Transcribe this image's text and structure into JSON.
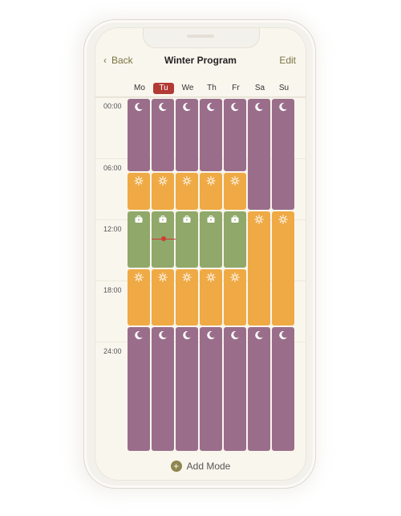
{
  "header": {
    "back_label": "Back",
    "title": "Winter Program",
    "edit_label": "Edit"
  },
  "days": [
    "Mo",
    "Tu",
    "We",
    "Th",
    "Fr",
    "Sa",
    "Su"
  ],
  "active_day": "Tu",
  "time_labels": [
    "00:00",
    "06:00",
    "12:00",
    "18:00",
    "24:00"
  ],
  "mode_colors": {
    "sleep": "#9a6e8b",
    "home": "#efaa45",
    "work": "#90a86a",
    "accent": "#b23a35"
  },
  "mode_icons": {
    "sleep": "moon-icon",
    "home": "sun-icon",
    "work": "briefcase-icon"
  },
  "footer": {
    "add_mode_label": "Add Mode"
  }
}
